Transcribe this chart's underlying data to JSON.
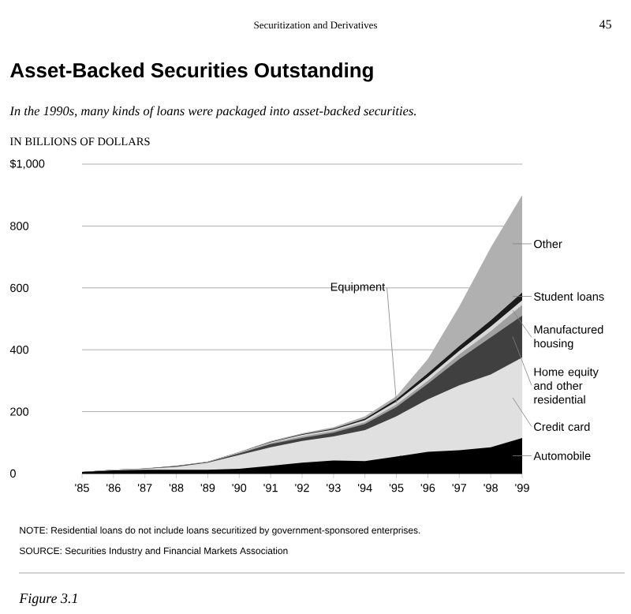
{
  "chart_data": {
    "type": "area",
    "stacked": true,
    "title": "Asset-Backed Securities Outstanding",
    "subtitle": "In the 1990s, many kinds of loans were packaged into asset-backed securities.",
    "ylabel": "IN BILLIONS OF DOLLARS",
    "categories": [
      "'85",
      "'86",
      "'87",
      "'88",
      "'89",
      "'90",
      "'91",
      "'92",
      "'93",
      "'94",
      "'95",
      "'96",
      "'97",
      "'98",
      "'99"
    ],
    "series": [
      {
        "name": "Automobile",
        "color": "#000000",
        "values": [
          5,
          10,
          12,
          12,
          12,
          15,
          25,
          35,
          42,
          40,
          55,
          70,
          75,
          85,
          115
        ]
      },
      {
        "name": "Credit card",
        "color": "#e0e0e0",
        "values": [
          0,
          2,
          3,
          10,
          23,
          45,
          60,
          70,
          78,
          100,
          130,
          170,
          210,
          235,
          260
        ]
      },
      {
        "name": "Home equity and other residential",
        "color": "#404040",
        "values": [
          0,
          0,
          1,
          2,
          2,
          5,
          10,
          10,
          12,
          20,
          30,
          50,
          85,
          120,
          135
        ]
      },
      {
        "name": "Manufactured housing",
        "color": "#a0a0a0",
        "values": [
          0,
          0,
          0,
          0,
          0,
          2,
          3,
          5,
          5,
          6,
          8,
          10,
          15,
          20,
          35
        ]
      },
      {
        "name": "Equipment",
        "color": "#d8d8d8",
        "values": [
          0,
          0,
          0,
          1,
          1,
          2,
          3,
          5,
          5,
          7,
          10,
          12,
          12,
          15,
          15
        ]
      },
      {
        "name": "Student loans",
        "color": "#1a1a1a",
        "values": [
          0,
          0,
          0,
          0,
          0,
          0,
          1,
          2,
          3,
          4,
          7,
          12,
          15,
          20,
          25
        ]
      },
      {
        "name": "Other",
        "color": "#b0b0b0",
        "values": [
          0,
          0,
          1,
          0,
          0,
          1,
          3,
          3,
          5,
          8,
          10,
          46,
          128,
          235,
          315
        ]
      }
    ],
    "ylim": [
      0,
      1000
    ],
    "yticks": [
      0,
      200,
      400,
      600,
      800,
      {
        "value": 1000,
        "label": "$1,000"
      }
    ],
    "grid": "y",
    "annotations": [
      "NOTE: Residential loans do not include loans securitized by government-sponsored enterprises.",
      "SOURCE: Securities Industry and Financial Markets Association",
      "Securitization and Derivatives",
      "45",
      "Figure 3.1"
    ]
  }
}
